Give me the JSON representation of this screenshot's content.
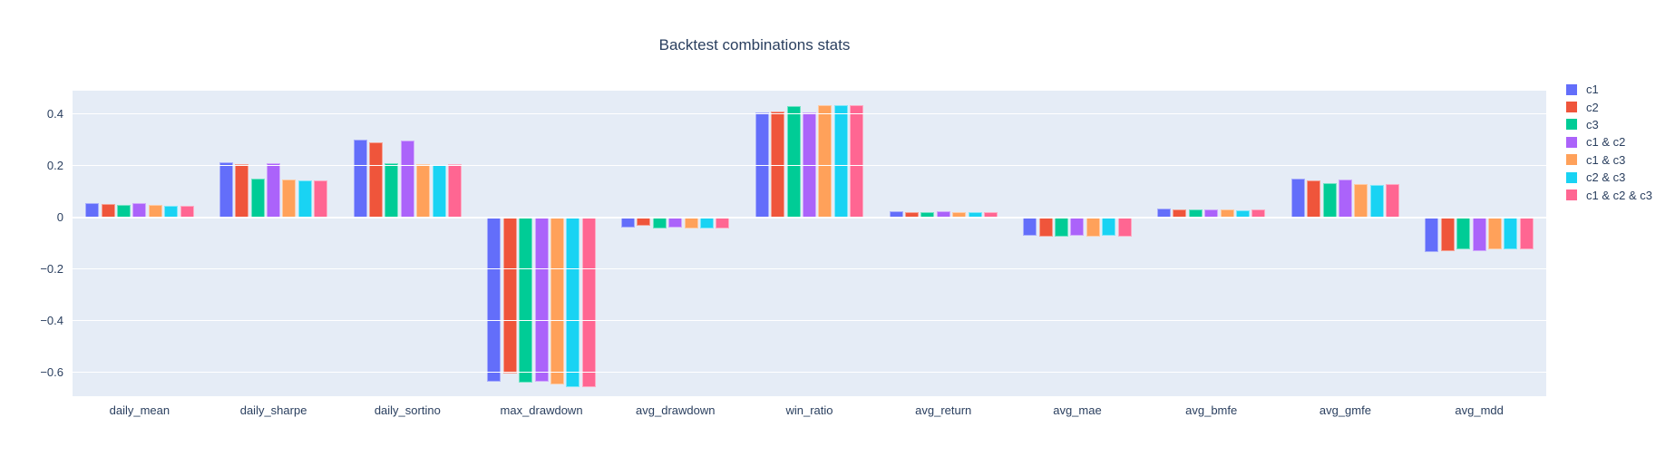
{
  "figure": {
    "title": "Backtest combinations stats"
  },
  "chart_data": {
    "type": "bar",
    "title": "Backtest combinations stats",
    "categories": [
      "daily_mean",
      "daily_sharpe",
      "daily_sortino",
      "max_drawdown",
      "avg_drawdown",
      "win_ratio",
      "avg_return",
      "avg_mae",
      "avg_bmfe",
      "avg_gmfe",
      "avg_mdd"
    ],
    "series": [
      {
        "name": "c1",
        "color": "#636EFA",
        "values": [
          0.053,
          0.212,
          0.299,
          -0.637,
          -0.039,
          0.406,
          0.022,
          -0.073,
          0.032,
          0.148,
          -0.135
        ]
      },
      {
        "name": "c2",
        "color": "#EF553B",
        "values": [
          0.051,
          0.205,
          0.289,
          -0.607,
          -0.032,
          0.41,
          0.021,
          -0.075,
          0.03,
          0.141,
          -0.133
        ]
      },
      {
        "name": "c3",
        "color": "#00CC96",
        "values": [
          0.046,
          0.149,
          0.21,
          -0.641,
          -0.044,
          0.43,
          0.021,
          -0.075,
          0.029,
          0.131,
          -0.124
        ]
      },
      {
        "name": "c1 & c2",
        "color": "#AB63FA",
        "values": [
          0.054,
          0.21,
          0.296,
          -0.637,
          -0.039,
          0.407,
          0.023,
          -0.073,
          0.031,
          0.145,
          -0.133
        ]
      },
      {
        "name": "c1 & c3",
        "color": "#FFA15A",
        "values": [
          0.046,
          0.147,
          0.206,
          -0.649,
          -0.045,
          0.433,
          0.021,
          -0.075,
          0.029,
          0.127,
          -0.126
        ]
      },
      {
        "name": "c2 & c3",
        "color": "#19D3F3",
        "values": [
          0.045,
          0.143,
          0.203,
          -0.659,
          -0.045,
          0.433,
          0.021,
          -0.073,
          0.028,
          0.125,
          -0.124
        ]
      },
      {
        "name": "c1 & c2 & c3",
        "color": "#FF6692",
        "values": [
          0.043,
          0.144,
          0.204,
          -0.659,
          -0.045,
          0.433,
          0.021,
          -0.075,
          0.029,
          0.127,
          -0.126
        ]
      }
    ],
    "yticks": [
      0.4,
      0.2,
      0,
      -0.2,
      -0.4,
      -0.6
    ],
    "ytick_labels": [
      "0.4",
      "0.2",
      "0",
      "−0.2",
      "−0.4",
      "−0.6"
    ],
    "ylim": [
      -0.693,
      0.49
    ],
    "xlabel": "",
    "ylabel": "",
    "grid": true,
    "legend_position": "right",
    "plot_bgcolor": "#E5ECF6",
    "paper_bgcolor": "#ffffff",
    "gridline_color": "#ffffff",
    "text_color": "#2a3f5f"
  }
}
